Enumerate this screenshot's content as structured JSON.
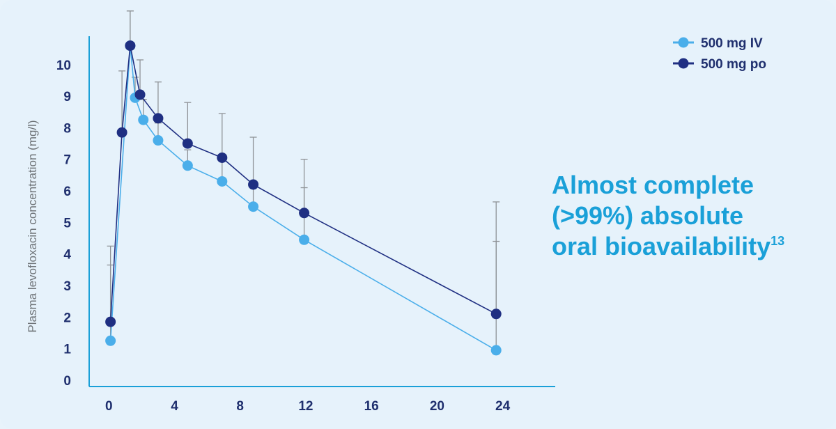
{
  "chart_data": {
    "type": "line",
    "ylabel": "Plasma levofloxacin concentration (mg/l)",
    "xlabel": "",
    "x_ticks": [
      0,
      4,
      8,
      12,
      16,
      20,
      24
    ],
    "y_ticks": [
      0,
      1,
      2,
      3,
      4,
      5,
      6,
      7,
      8,
      9,
      10
    ],
    "xlim": [
      -1.2,
      27.2
    ],
    "ylim": [
      -0.2,
      10.9
    ],
    "grid": false,
    "legend_position": "top-right",
    "series": [
      {
        "name": "500 mg IV",
        "color": "#4aaeea",
        "points": [
          {
            "x": 0.1,
            "y": 1.25,
            "err": 2.4
          },
          {
            "x": 1.3,
            "y": 10.6,
            "err": 1.1
          },
          {
            "x": 1.6,
            "y": 8.95,
            "err": 0.65
          },
          {
            "x": 2.1,
            "y": 8.25,
            "err": 0.65
          },
          {
            "x": 3.0,
            "y": 7.6,
            "err": 0.55
          },
          {
            "x": 4.8,
            "y": 6.8,
            "err": 0.5
          },
          {
            "x": 6.9,
            "y": 6.3,
            "err": 0.65
          },
          {
            "x": 8.8,
            "y": 5.5,
            "err": 0.75
          },
          {
            "x": 11.9,
            "y": 4.45,
            "err": 1.65
          },
          {
            "x": 23.6,
            "y": 0.95,
            "err": 3.45
          }
        ]
      },
      {
        "name": "500 mg po",
        "color": "#1f2f82",
        "points": [
          {
            "x": 0.1,
            "y": 1.85,
            "err": 2.4
          },
          {
            "x": 0.8,
            "y": 7.85,
            "err": 1.95
          },
          {
            "x": 1.3,
            "y": 10.6,
            "err": 1.1
          },
          {
            "x": 1.9,
            "y": 9.05,
            "err": 1.1
          },
          {
            "x": 3.0,
            "y": 8.3,
            "err": 1.15
          },
          {
            "x": 4.8,
            "y": 7.5,
            "err": 1.3
          },
          {
            "x": 6.9,
            "y": 7.05,
            "err": 1.4
          },
          {
            "x": 8.8,
            "y": 6.2,
            "err": 1.5
          },
          {
            "x": 11.9,
            "y": 5.3,
            "err": 1.7
          },
          {
            "x": 23.6,
            "y": 2.1,
            "err": 3.55
          }
        ]
      }
    ]
  },
  "callout": {
    "line1": "Almost complete",
    "line2": "(>99%) absolute",
    "line3": "oral bioavailability",
    "sup": "13"
  },
  "colors": {
    "background": "#e6f2fb",
    "axis": "#1aa0d8",
    "error_bar": "#8f9397",
    "callout": "#1aa0d8"
  }
}
